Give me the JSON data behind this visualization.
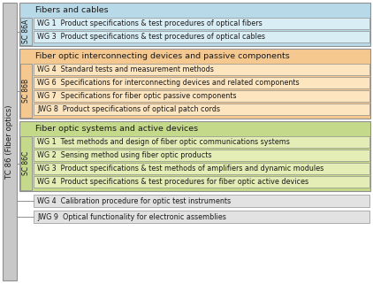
{
  "title": "TC 86 (Fiber optics)",
  "tc_box_color": "#c8c8c8",
  "sections": [
    {
      "sc_label": "SC 86A",
      "outer_color": "#b8d9e8",
      "header": "Fibers and cables",
      "items": [
        "WG 1  Product specifications & test procedures of optical fibers",
        "WG 3  Product specifications & test procedures of optical cables"
      ],
      "item_color": "#d9edf5"
    },
    {
      "sc_label": "SC 86B",
      "outer_color": "#f5c890",
      "header": "Fiber optic interconnecting devices and passive components",
      "items": [
        "WG 4  Standard tests and measurement methods",
        "WG 6  Specifications for interconnecting devices and related components",
        "WG 7  Specifications for fiber optic passive components",
        "JWG 8  Product specifications of optical patch cords"
      ],
      "item_color": "#fde5c0"
    },
    {
      "sc_label": "SC 86C",
      "outer_color": "#c5d98a",
      "header": "Fiber optic systems and active devices",
      "items": [
        "WG 1  Test methods and design of fiber optic communications systems",
        "WG 2  Sensing method using fiber optic products",
        "WG 3  Product specifications & test methods of amplifiers and dynamic modules",
        "WG 4  Product specifications & test procedures for fiber optic active devices"
      ],
      "item_color": "#e3edb5"
    }
  ],
  "standalone": [
    "WG 4  Calibration procedure for optic test instruments",
    "JWG 9  Optical functionality for electronic assemblies"
  ],
  "standalone_color": "#e2e2e2",
  "text_color": "#1a1a1a",
  "border_color": "#909090"
}
